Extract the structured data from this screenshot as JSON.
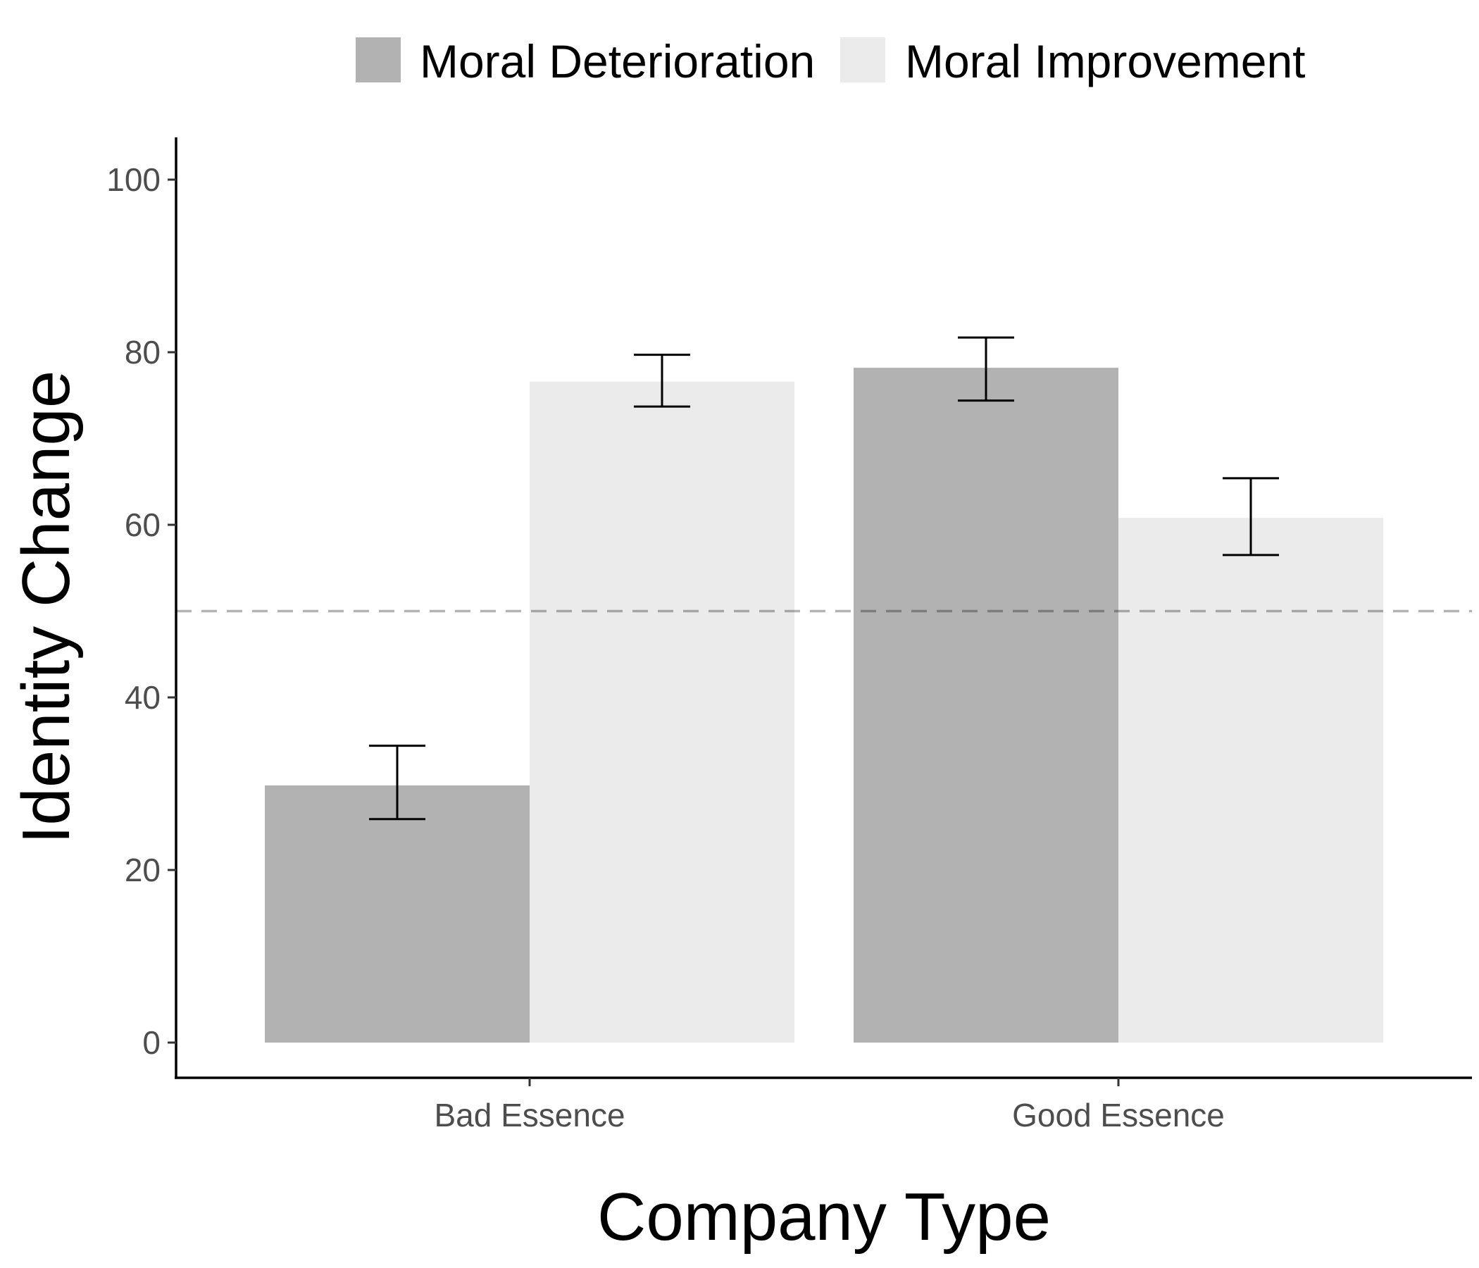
{
  "chart_data": {
    "type": "bar",
    "xlabel": "Company Type",
    "ylabel": "Identity Change",
    "categories": [
      "Bad Essence",
      "Good Essence"
    ],
    "series": [
      {
        "name": "Moral Deterioration",
        "color": "#b2b2b2",
        "values": [
          29.8,
          78.2
        ],
        "error_low": [
          25.9,
          74.4
        ],
        "error_high": [
          34.4,
          81.7
        ]
      },
      {
        "name": "Moral Improvement",
        "color": "#ebebeb",
        "values": [
          76.6,
          60.8
        ],
        "error_low": [
          73.7,
          56.5
        ],
        "error_high": [
          79.7,
          65.4
        ]
      }
    ],
    "ylim": [
      0,
      100
    ],
    "yticks": [
      0,
      20,
      40,
      60,
      80,
      100
    ],
    "reference_line": {
      "y": 50,
      "style": "dashed",
      "color": "#b3b3b3"
    },
    "legend_position": "top",
    "grid": false
  }
}
